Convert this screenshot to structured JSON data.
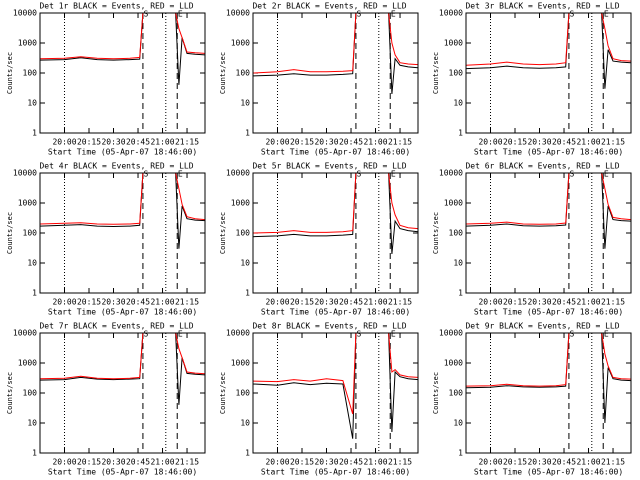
{
  "chart_data": [
    {
      "type": "line",
      "title": "Det 1r BLACK = Events, RED = LLD",
      "xlabel": "Start Time (05-Apr-07 18:46:00)",
      "ylabel": "Counts/sec",
      "x": [
        "19:45",
        "20:00",
        "20:10",
        "20:20",
        "20:30",
        "20:40",
        "20:46",
        "20:48",
        "21:08",
        "21:10",
        "21:12",
        "21:15",
        "21:20",
        "21:26"
      ],
      "series": [
        {
          "color": "#000000",
          "values": [
            270,
            280,
            320,
            280,
            270,
            280,
            290,
            10000,
            10000,
            40,
            1500,
            450,
            420,
            400
          ]
        },
        {
          "color": "#ff0000",
          "values": [
            300,
            310,
            350,
            310,
            300,
            310,
            330,
            10000,
            10000,
            3000,
            1500,
            500,
            470,
            450
          ]
        }
      ],
      "xlim": [
        "19:45",
        "21:26"
      ],
      "xticks": [
        "20:00",
        "20:15",
        "20:30",
        "20:45",
        "21:00",
        "21:15"
      ],
      "ylim": [
        1,
        10000
      ],
      "yticks": [
        1,
        10,
        100,
        1000,
        10000
      ],
      "log": true,
      "vlines": [
        {
          "x": "20:00",
          "style": "dotted"
        },
        {
          "x": "21:02",
          "style": "dotted"
        },
        {
          "x": "20:48",
          "style": "dashed"
        },
        {
          "x": "21:09",
          "style": "dashed"
        }
      ],
      "annotations": [
        {
          "x": "20:48",
          "label": "S"
        },
        {
          "x": "21:09",
          "label": "E"
        }
      ]
    },
    {
      "type": "line",
      "title": "Det 2r BLACK = Events, RED = LLD",
      "xlabel": "Start Time (05-Apr-07 18:46:00)",
      "ylabel": "Counts/sec",
      "x": [
        "19:45",
        "20:00",
        "20:10",
        "20:20",
        "20:30",
        "20:40",
        "20:46",
        "20:48",
        "21:08",
        "21:10",
        "21:12",
        "21:15",
        "21:20",
        "21:26"
      ],
      "series": [
        {
          "color": "#000000",
          "values": [
            80,
            85,
            95,
            85,
            85,
            90,
            95,
            10000,
            10000,
            20,
            300,
            180,
            160,
            150
          ]
        },
        {
          "color": "#ff0000",
          "values": [
            100,
            110,
            130,
            110,
            110,
            115,
            120,
            10000,
            10000,
            1000,
            400,
            220,
            200,
            190
          ]
        }
      ],
      "xlim": [
        "19:45",
        "21:26"
      ],
      "xticks": [
        "20:00",
        "20:15",
        "20:30",
        "20:45",
        "21:00",
        "21:15"
      ],
      "ylim": [
        1,
        10000
      ],
      "yticks": [
        1,
        10,
        100,
        1000,
        10000
      ],
      "log": true,
      "vlines": [
        {
          "x": "20:00",
          "style": "dotted"
        },
        {
          "x": "21:02",
          "style": "dotted"
        },
        {
          "x": "20:48",
          "style": "dashed"
        },
        {
          "x": "21:09",
          "style": "dashed"
        }
      ],
      "annotations": [
        {
          "x": "20:48",
          "label": "S"
        },
        {
          "x": "21:09",
          "label": "E"
        }
      ]
    },
    {
      "type": "line",
      "title": "Det 3r BLACK = Events, RED = LLD",
      "xlabel": "Start Time (05-Apr-07 18:46:00)",
      "ylabel": "Counts/sec",
      "x": [
        "19:45",
        "20:00",
        "20:10",
        "20:20",
        "20:30",
        "20:40",
        "20:46",
        "20:48",
        "21:08",
        "21:10",
        "21:12",
        "21:15",
        "21:20",
        "21:26"
      ],
      "series": [
        {
          "color": "#000000",
          "values": [
            140,
            150,
            170,
            150,
            145,
            150,
            160,
            10000,
            10000,
            30,
            600,
            250,
            230,
            220
          ]
        },
        {
          "color": "#ff0000",
          "values": [
            180,
            200,
            230,
            200,
            190,
            200,
            220,
            10000,
            10000,
            3000,
            800,
            300,
            260,
            250
          ]
        }
      ],
      "xlim": [
        "19:45",
        "21:26"
      ],
      "xticks": [
        "20:00",
        "20:15",
        "20:30",
        "20:45",
        "21:00",
        "21:15"
      ],
      "ylim": [
        1,
        10000
      ],
      "yticks": [
        1,
        10,
        100,
        1000,
        10000
      ],
      "log": true,
      "vlines": [
        {
          "x": "20:00",
          "style": "dotted"
        },
        {
          "x": "21:02",
          "style": "dotted"
        },
        {
          "x": "20:48",
          "style": "dashed"
        },
        {
          "x": "21:09",
          "style": "dashed"
        }
      ],
      "annotations": [
        {
          "x": "20:48",
          "label": "S"
        },
        {
          "x": "21:09",
          "label": "E"
        }
      ]
    },
    {
      "type": "line",
      "title": "Det 4r BLACK = Events, RED = LLD",
      "xlabel": "Start Time (05-Apr-07 18:46:00)",
      "ylabel": "Counts/sec",
      "x": [
        "19:45",
        "20:00",
        "20:10",
        "20:20",
        "20:30",
        "20:40",
        "20:46",
        "20:48",
        "21:08",
        "21:10",
        "21:12",
        "21:15",
        "21:20",
        "21:26"
      ],
      "series": [
        {
          "color": "#000000",
          "values": [
            170,
            180,
            190,
            170,
            165,
            170,
            180,
            10000,
            10000,
            30,
            800,
            300,
            270,
            260
          ]
        },
        {
          "color": "#ff0000",
          "values": [
            200,
            210,
            220,
            200,
            195,
            200,
            210,
            10000,
            10000,
            3000,
            900,
            350,
            300,
            280
          ]
        }
      ],
      "xlim": [
        "19:45",
        "21:26"
      ],
      "xticks": [
        "20:00",
        "20:15",
        "20:30",
        "20:45",
        "21:00",
        "21:15"
      ],
      "ylim": [
        1,
        10000
      ],
      "yticks": [
        1,
        10,
        100,
        1000,
        10000
      ],
      "log": true,
      "vlines": [
        {
          "x": "20:00",
          "style": "dotted"
        },
        {
          "x": "21:02",
          "style": "dotted"
        },
        {
          "x": "20:48",
          "style": "dashed"
        },
        {
          "x": "21:09",
          "style": "dashed"
        }
      ],
      "annotations": [
        {
          "x": "20:48",
          "label": "S"
        },
        {
          "x": "21:09",
          "label": "E"
        }
      ]
    },
    {
      "type": "line",
      "title": "Det 5r BLACK = Events, RED = LLD",
      "xlabel": "Start Time (05-Apr-07 18:46:00)",
      "ylabel": "Counts/sec",
      "x": [
        "19:45",
        "20:00",
        "20:10",
        "20:20",
        "20:30",
        "20:40",
        "20:46",
        "20:48",
        "21:08",
        "21:10",
        "21:12",
        "21:15",
        "21:20",
        "21:26"
      ],
      "series": [
        {
          "color": "#000000",
          "values": [
            75,
            80,
            90,
            80,
            80,
            85,
            90,
            10000,
            10000,
            20,
            250,
            140,
            120,
            110
          ]
        },
        {
          "color": "#ff0000",
          "values": [
            100,
            105,
            120,
            105,
            105,
            110,
            120,
            10000,
            10000,
            1000,
            400,
            180,
            150,
            140
          ]
        }
      ],
      "xlim": [
        "19:45",
        "21:26"
      ],
      "xticks": [
        "20:00",
        "20:15",
        "20:30",
        "20:45",
        "21:00",
        "21:15"
      ],
      "ylim": [
        1,
        10000
      ],
      "yticks": [
        1,
        10,
        100,
        1000,
        10000
      ],
      "log": true,
      "vlines": [
        {
          "x": "20:00",
          "style": "dotted"
        },
        {
          "x": "21:02",
          "style": "dotted"
        },
        {
          "x": "20:48",
          "style": "dashed"
        },
        {
          "x": "21:09",
          "style": "dashed"
        }
      ],
      "annotations": [
        {
          "x": "20:48",
          "label": "S"
        },
        {
          "x": "21:09",
          "label": "E"
        }
      ]
    },
    {
      "type": "line",
      "title": "Det 6r BLACK = Events, RED = LLD",
      "xlabel": "Start Time (05-Apr-07 18:46:00)",
      "ylabel": "Counts/sec",
      "x": [
        "19:45",
        "20:00",
        "20:10",
        "20:20",
        "20:30",
        "20:40",
        "20:46",
        "20:48",
        "21:08",
        "21:10",
        "21:12",
        "21:15",
        "21:20",
        "21:26"
      ],
      "series": [
        {
          "color": "#000000",
          "values": [
            170,
            180,
            200,
            175,
            170,
            175,
            185,
            10000,
            10000,
            30,
            800,
            280,
            260,
            250
          ]
        },
        {
          "color": "#ff0000",
          "values": [
            200,
            210,
            230,
            200,
            195,
            200,
            215,
            10000,
            10000,
            3000,
            900,
            330,
            300,
            280
          ]
        }
      ],
      "xlim": [
        "19:45",
        "21:26"
      ],
      "xticks": [
        "20:00",
        "20:15",
        "20:30",
        "20:45",
        "21:00",
        "21:15"
      ],
      "ylim": [
        1,
        10000
      ],
      "yticks": [
        1,
        10,
        100,
        1000,
        10000
      ],
      "log": true,
      "vlines": [
        {
          "x": "20:00",
          "style": "dotted"
        },
        {
          "x": "21:02",
          "style": "dotted"
        },
        {
          "x": "20:48",
          "style": "dashed"
        },
        {
          "x": "21:09",
          "style": "dashed"
        }
      ],
      "annotations": [
        {
          "x": "20:48",
          "label": "S"
        },
        {
          "x": "21:09",
          "label": "E"
        }
      ]
    },
    {
      "type": "line",
      "title": "Det 7r BLACK = Events, RED = LLD",
      "xlabel": "Start Time (05-Apr-07 18:46:00)",
      "ylabel": "Counts/sec",
      "x": [
        "19:45",
        "20:00",
        "20:10",
        "20:20",
        "20:30",
        "20:40",
        "20:46",
        "20:48",
        "21:08",
        "21:10",
        "21:12",
        "21:15",
        "21:20",
        "21:26"
      ],
      "series": [
        {
          "color": "#000000",
          "values": [
            270,
            280,
            330,
            290,
            280,
            290,
            300,
            10000,
            10000,
            40,
            1500,
            450,
            420,
            400
          ]
        },
        {
          "color": "#ff0000",
          "values": [
            300,
            310,
            360,
            310,
            300,
            310,
            330,
            10000,
            10000,
            3000,
            1500,
            500,
            460,
            440
          ]
        }
      ],
      "xlim": [
        "19:45",
        "21:26"
      ],
      "xticks": [
        "20:00",
        "20:15",
        "20:30",
        "20:45",
        "21:00",
        "21:15"
      ],
      "ylim": [
        1,
        10000
      ],
      "yticks": [
        1,
        10,
        100,
        1000,
        10000
      ],
      "log": true,
      "vlines": [
        {
          "x": "20:00",
          "style": "dotted"
        },
        {
          "x": "21:02",
          "style": "dotted"
        },
        {
          "x": "20:48",
          "style": "dashed"
        },
        {
          "x": "21:09",
          "style": "dashed"
        }
      ],
      "annotations": [
        {
          "x": "20:48",
          "label": "S"
        },
        {
          "x": "21:09",
          "label": "E"
        }
      ]
    },
    {
      "type": "line",
      "title": "Det 8r BLACK = Events, RED = LLD",
      "xlabel": "Start Time (05-Apr-07 18:46:00)",
      "ylabel": "Counts/sec",
      "x": [
        "19:45",
        "20:00",
        "20:10",
        "20:20",
        "20:30",
        "20:40",
        "20:46",
        "20:48",
        "21:08",
        "21:10",
        "21:12",
        "21:15",
        "21:20",
        "21:26"
      ],
      "series": [
        {
          "color": "#000000",
          "values": [
            200,
            180,
            220,
            190,
            210,
            200,
            3,
            10000,
            10000,
            5,
            500,
            350,
            300,
            280
          ]
        },
        {
          "color": "#ff0000",
          "values": [
            250,
            240,
            280,
            250,
            300,
            260,
            20,
            10000,
            10000,
            500,
            600,
            400,
            350,
            330
          ]
        }
      ],
      "xlim": [
        "19:45",
        "21:26"
      ],
      "xticks": [
        "20:00",
        "20:15",
        "20:30",
        "20:45",
        "21:00",
        "21:15"
      ],
      "ylim": [
        1,
        10000
      ],
      "yticks": [
        1,
        10,
        100,
        1000,
        10000
      ],
      "log": true,
      "vlines": [
        {
          "x": "20:00",
          "style": "dotted"
        },
        {
          "x": "21:02",
          "style": "dotted"
        },
        {
          "x": "20:48",
          "style": "dashed"
        },
        {
          "x": "21:09",
          "style": "dashed"
        }
      ],
      "annotations": [
        {
          "x": "20:48",
          "label": "S"
        },
        {
          "x": "21:09",
          "label": "E"
        }
      ]
    },
    {
      "type": "line",
      "title": "Det 9r BLACK = Events, RED = LLD",
      "xlabel": "Start Time (05-Apr-07 18:46:00)",
      "ylabel": "Counts/sec",
      "x": [
        "19:45",
        "20:00",
        "20:10",
        "20:20",
        "20:30",
        "20:40",
        "20:46",
        "20:48",
        "21:08",
        "21:10",
        "21:12",
        "21:15",
        "21:20",
        "21:26"
      ],
      "series": [
        {
          "color": "#000000",
          "values": [
            150,
            155,
            175,
            160,
            155,
            160,
            170,
            10000,
            10000,
            10,
            700,
            300,
            270,
            260
          ]
        },
        {
          "color": "#ff0000",
          "values": [
            170,
            175,
            195,
            175,
            170,
            175,
            190,
            10000,
            10000,
            2000,
            800,
            330,
            300,
            290
          ]
        }
      ],
      "xlim": [
        "19:45",
        "21:26"
      ],
      "xticks": [
        "20:00",
        "20:15",
        "20:30",
        "20:45",
        "21:00",
        "21:15"
      ],
      "ylim": [
        1,
        10000
      ],
      "yticks": [
        1,
        10,
        100,
        1000,
        10000
      ],
      "log": true,
      "vlines": [
        {
          "x": "20:00",
          "style": "dotted"
        },
        {
          "x": "21:02",
          "style": "dotted"
        },
        {
          "x": "20:48",
          "style": "dashed"
        },
        {
          "x": "21:09",
          "style": "dashed"
        }
      ],
      "annotations": [
        {
          "x": "20:48",
          "label": "S"
        },
        {
          "x": "21:09",
          "label": "E"
        }
      ]
    }
  ]
}
